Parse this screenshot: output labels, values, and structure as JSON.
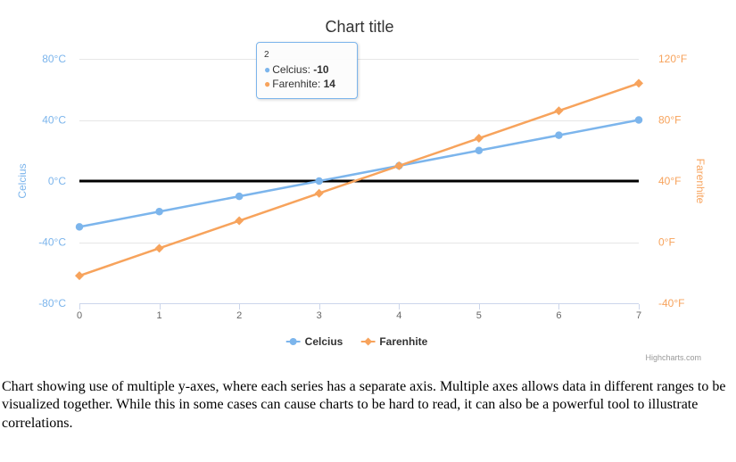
{
  "page": {
    "caption": "Chart showing use of multiple y-axes, where each series has a separate axis. Multiple axes allows data in different ranges to be visualized together. While this in some cases can cause charts to be hard to read, it can also be a powerful tool to illustrate correlations."
  },
  "chart": {
    "title": "Chart title",
    "credit": "Highcharts.com",
    "tooltip": {
      "header": "2",
      "rows": [
        {
          "label": "Celcius: ",
          "value": "-10",
          "color": "#7cb5ec"
        },
        {
          "label": "Farenhite: ",
          "value": "14",
          "color": "#f7a35c"
        }
      ]
    },
    "legend": [
      {
        "label": "Celcius",
        "color": "#7cb5ec",
        "marker": "circle"
      },
      {
        "label": "Farenhite",
        "color": "#f7a35c",
        "marker": "diamond"
      }
    ],
    "colors": {
      "blue_series": "#7cb5ec",
      "orange_series": "#f7a35c",
      "grid_line": "#e6e6e6",
      "axis_line": "#ccd6eb",
      "x_label": "#666666",
      "text": "#333333",
      "credit": "#999999",
      "zero_line": "#000000"
    }
  },
  "chart_data": {
    "type": "line",
    "title": "Chart title",
    "x": [
      0,
      1,
      2,
      3,
      4,
      5,
      6,
      7
    ],
    "x_tick_labels": [
      "0",
      "1",
      "2",
      "3",
      "4",
      "5",
      "6",
      "7"
    ],
    "series": [
      {
        "name": "Celcius",
        "axis": "left",
        "color": "#7cb5ec",
        "marker": "circle",
        "values": [
          -30,
          -20,
          -10,
          0,
          10,
          20,
          30,
          40
        ]
      },
      {
        "name": "Farenhite",
        "axis": "right",
        "color": "#f7a35c",
        "marker": "diamond",
        "values": [
          -22,
          -4,
          14,
          32,
          50,
          68,
          86,
          104
        ]
      }
    ],
    "yaxis_left": {
      "title": "Celcius",
      "color": "#7cb5ec",
      "min": -80,
      "max": 80,
      "tick_values": [
        80,
        40,
        0,
        -40,
        -80
      ],
      "tick_labels": [
        "80°C",
        "40°C",
        "0°C",
        "-40°C",
        "-80°C"
      ]
    },
    "yaxis_right": {
      "title": "Farenhite",
      "color": "#f7a35c",
      "min": -40,
      "max": 120,
      "tick_values": [
        120,
        80,
        40,
        0,
        -40
      ],
      "tick_labels": [
        "120°F",
        "80°F",
        "40°F",
        "0°F",
        "-40°F"
      ]
    },
    "plot_line": {
      "axis": "left",
      "value": 0,
      "color": "#000000",
      "width": 3
    },
    "grid": true,
    "legend_position": "bottom"
  }
}
